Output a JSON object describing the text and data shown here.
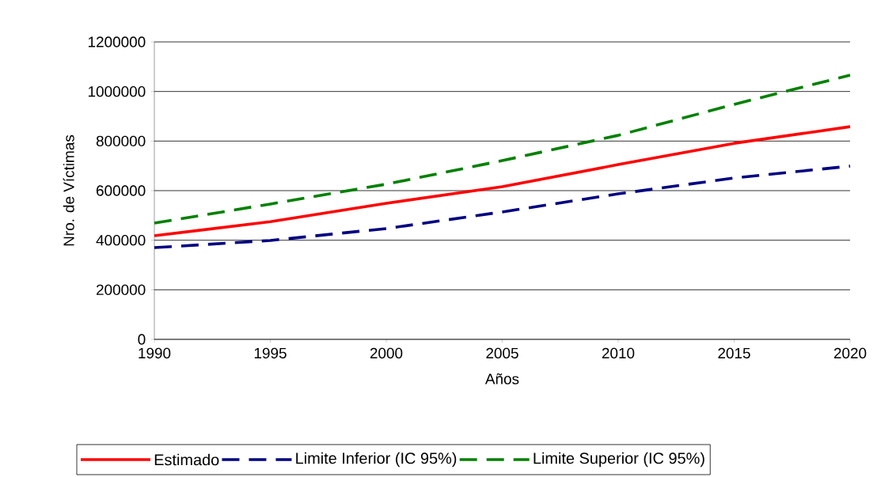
{
  "chart_data": {
    "type": "line",
    "xlabel": "Años",
    "ylabel": "Nro. de Víctimas",
    "x": [
      1990,
      1995,
      2000,
      2005,
      2010,
      2015,
      2020
    ],
    "series": [
      {
        "name": "Estimado",
        "color": "#ff0000",
        "line_style": "solid",
        "values": [
          418000,
          475000,
          549000,
          616000,
          705000,
          791000,
          858000
        ]
      },
      {
        "name": "Limite Inferior (IC 95%)",
        "color": "#000080",
        "line_style": "dashed",
        "values": [
          370000,
          399000,
          447000,
          514000,
          587000,
          651000,
          699000
        ]
      },
      {
        "name": "Limite Superior (IC 95%)",
        "color": "#008000",
        "line_style": "dashed",
        "values": [
          469000,
          546000,
          626000,
          721000,
          823000,
          948000,
          1066000
        ]
      }
    ],
    "xlim": [
      1990,
      2020
    ],
    "xticks": [
      1990,
      1995,
      2000,
      2005,
      2010,
      2015,
      2020
    ],
    "ylim": [
      0,
      1200000
    ],
    "yticks": [
      0,
      200000,
      400000,
      600000,
      800000,
      1000000,
      1200000
    ],
    "grid": "y",
    "legend": "bottom",
    "marker": "none"
  }
}
